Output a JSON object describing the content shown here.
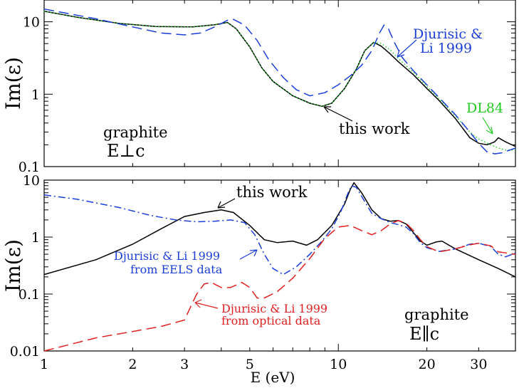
{
  "chart_data": [
    {
      "type": "line",
      "ylabel": "Im(ε)",
      "xlabel": "",
      "xscale": "log",
      "yscale": "log",
      "xlim": [
        1,
        40
      ],
      "ylim": [
        0.1,
        20
      ],
      "yticks": [
        {
          "v": 0.1,
          "label": "0.1"
        },
        {
          "v": 1,
          "label": "1"
        },
        {
          "v": 10,
          "label": "10"
        }
      ],
      "series": [
        {
          "key": "work",
          "style": "solid",
          "color": "#000000",
          "points": [
            [
              1,
              14
            ],
            [
              1.3,
              11.5
            ],
            [
              1.8,
              9.5
            ],
            [
              2.4,
              8.6
            ],
            [
              3.2,
              8.5
            ],
            [
              3.8,
              9.1
            ],
            [
              4.2,
              9.8
            ],
            [
              4.5,
              8
            ],
            [
              5,
              4.5
            ],
            [
              5.5,
              2.3
            ],
            [
              6,
              1.5
            ],
            [
              7,
              0.95
            ],
            [
              8,
              0.75
            ],
            [
              8.8,
              0.68
            ],
            [
              9.5,
              0.75
            ],
            [
              10.5,
              1.2
            ],
            [
              11.5,
              2.2
            ],
            [
              12.3,
              4
            ],
            [
              13.2,
              5.2
            ],
            [
              14,
              4.6
            ],
            [
              15,
              3.6
            ],
            [
              16,
              2.8
            ],
            [
              18,
              1.85
            ],
            [
              20,
              1.2
            ],
            [
              22,
              0.82
            ],
            [
              25,
              0.46
            ],
            [
              28,
              0.25
            ],
            [
              30,
              0.21
            ],
            [
              32,
              0.2
            ],
            [
              34,
              0.22
            ],
            [
              35,
              0.25
            ],
            [
              37,
              0.22
            ],
            [
              40,
              0.19
            ]
          ]
        },
        {
          "key": "dl84",
          "style": "dotted",
          "color": "#22cc22",
          "points": [
            [
              1,
              14
            ],
            [
              1.3,
              11.5
            ],
            [
              1.8,
              9.5
            ],
            [
              2.4,
              8.6
            ],
            [
              3.2,
              8.5
            ],
            [
              3.8,
              9.1
            ],
            [
              4.2,
              9.8
            ],
            [
              4.5,
              8
            ],
            [
              5,
              4.5
            ],
            [
              5.5,
              2.3
            ],
            [
              6,
              1.5
            ],
            [
              7,
              0.95
            ],
            [
              8,
              0.75
            ],
            [
              8.8,
              0.68
            ],
            [
              9.5,
              0.75
            ],
            [
              10.5,
              1.2
            ],
            [
              11.5,
              2.2
            ],
            [
              12.3,
              4
            ],
            [
              13.2,
              5.2
            ],
            [
              14,
              5
            ],
            [
              15,
              4.1
            ],
            [
              16,
              3.1
            ],
            [
              18,
              2
            ],
            [
              20,
              1.28
            ],
            [
              22,
              0.86
            ],
            [
              25,
              0.5
            ],
            [
              28,
              0.3
            ],
            [
              30,
              0.24
            ],
            [
              33,
              0.2
            ],
            [
              35,
              0.18
            ],
            [
              37,
              0.17
            ],
            [
              40,
              0.17
            ]
          ]
        },
        {
          "key": "dj",
          "style": "dashed",
          "color": "#1a3fd8",
          "points": [
            [
              1,
              15
            ],
            [
              1.5,
              11
            ],
            [
              2,
              8.5
            ],
            [
              2.5,
              7
            ],
            [
              3,
              6.6
            ],
            [
              3.4,
              7
            ],
            [
              3.8,
              8.5
            ],
            [
              4.2,
              10.5
            ],
            [
              4.4,
              10.8
            ],
            [
              4.8,
              9
            ],
            [
              5.3,
              5.5
            ],
            [
              5.8,
              3
            ],
            [
              6.5,
              1.7
            ],
            [
              7.2,
              1.15
            ],
            [
              8,
              0.95
            ],
            [
              9,
              1.05
            ],
            [
              10,
              1.35
            ],
            [
              11,
              1.8
            ],
            [
              12,
              2.5
            ],
            [
              13,
              4
            ],
            [
              13.8,
              7
            ],
            [
              14.3,
              9
            ],
            [
              14.8,
              8
            ],
            [
              15.5,
              5.2
            ],
            [
              16.5,
              3.2
            ],
            [
              18,
              2.1
            ],
            [
              20,
              1.35
            ],
            [
              22,
              0.9
            ],
            [
              25,
              0.52
            ],
            [
              28,
              0.3
            ],
            [
              30,
              0.21
            ],
            [
              32,
              0.16
            ],
            [
              34,
              0.15
            ],
            [
              36,
              0.155
            ],
            [
              40,
              0.18
            ]
          ]
        }
      ],
      "annotations": {
        "dj_line1": "Djurisic &",
        "dj_line2": "Li 1999",
        "dl84": "DL84",
        "work": "this work",
        "material": "graphite",
        "orientation": "E⊥c"
      }
    },
    {
      "type": "line",
      "ylabel": "Im(ε)",
      "xlabel": "E (eV)",
      "xscale": "log",
      "yscale": "log",
      "xlim": [
        1,
        40
      ],
      "ylim": [
        0.01,
        10
      ],
      "yticks": [
        {
          "v": 0.01,
          "label": "0.01"
        },
        {
          "v": 0.1,
          "label": "0.1"
        },
        {
          "v": 1,
          "label": "1"
        },
        {
          "v": 10,
          "label": "10"
        }
      ],
      "xticks": [
        {
          "v": 1,
          "label": "1"
        },
        {
          "v": 2,
          "label": "2"
        },
        {
          "v": 3,
          "label": "3"
        },
        {
          "v": 5,
          "label": "5"
        },
        {
          "v": 10,
          "label": "10"
        },
        {
          "v": 20,
          "label": "20"
        },
        {
          "v": 30,
          "label": "30"
        }
      ],
      "series": [
        {
          "key": "work",
          "style": "solid",
          "color": "#000000",
          "points": [
            [
              1,
              0.22
            ],
            [
              1.5,
              0.4
            ],
            [
              2,
              0.75
            ],
            [
              2.5,
              1.4
            ],
            [
              3,
              2.3
            ],
            [
              3.5,
              2.7
            ],
            [
              4,
              3
            ],
            [
              4.4,
              2.7
            ],
            [
              5,
              1.6
            ],
            [
              5.6,
              0.9
            ],
            [
              6.2,
              0.8
            ],
            [
              7,
              0.85
            ],
            [
              7.8,
              0.72
            ],
            [
              8.5,
              0.9
            ],
            [
              9.5,
              1.6
            ],
            [
              10.5,
              3.8
            ],
            [
              11,
              7
            ],
            [
              11.3,
              9
            ],
            [
              12,
              6
            ],
            [
              13,
              3
            ],
            [
              14,
              2.1
            ],
            [
              15,
              1.9
            ],
            [
              16,
              1.95
            ],
            [
              17,
              1.7
            ],
            [
              18,
              1.2
            ],
            [
              19,
              0.85
            ],
            [
              20,
              0.72
            ],
            [
              21.5,
              0.82
            ],
            [
              22.5,
              0.85
            ],
            [
              25,
              0.62
            ],
            [
              30,
              0.4
            ],
            [
              35,
              0.28
            ],
            [
              40,
              0.2
            ]
          ]
        },
        {
          "key": "eels",
          "style": "dashdot",
          "color": "#1a3fd8",
          "points": [
            [
              1,
              5.5
            ],
            [
              1.3,
              4.6
            ],
            [
              1.8,
              3.3
            ],
            [
              2.3,
              2.4
            ],
            [
              2.8,
              2
            ],
            [
              3.3,
              1.85
            ],
            [
              3.8,
              1.9
            ],
            [
              4.3,
              2
            ],
            [
              4.8,
              1.8
            ],
            [
              5.2,
              1.1
            ],
            [
              5.6,
              0.5
            ],
            [
              6,
              0.28
            ],
            [
              6.5,
              0.22
            ],
            [
              7.2,
              0.3
            ],
            [
              8,
              0.5
            ],
            [
              8.8,
              0.85
            ],
            [
              9.5,
              1.4
            ],
            [
              10.2,
              2.8
            ],
            [
              10.8,
              6
            ],
            [
              11.1,
              8
            ],
            [
              11.5,
              7.5
            ],
            [
              12.2,
              4.5
            ],
            [
              13,
              2.6
            ],
            [
              14,
              2.1
            ],
            [
              15,
              1.8
            ],
            [
              16,
              1.65
            ],
            [
              17,
              1.5
            ],
            [
              18,
              1.15
            ],
            [
              19,
              0.8
            ],
            [
              20,
              0.65
            ],
            [
              22,
              0.56
            ],
            [
              25,
              0.62
            ],
            [
              28,
              0.75
            ],
            [
              30,
              0.78
            ],
            [
              33,
              0.68
            ],
            [
              35,
              0.5
            ],
            [
              37,
              0.45
            ],
            [
              40,
              0.52
            ]
          ]
        },
        {
          "key": "optical",
          "style": "dashed",
          "color": "#e02020",
          "points": [
            [
              1,
              0.01
            ],
            [
              1.5,
              0.017
            ],
            [
              2,
              0.022
            ],
            [
              2.5,
              0.027
            ],
            [
              3,
              0.035
            ],
            [
              3.15,
              0.06
            ],
            [
              3.3,
              0.1
            ],
            [
              3.5,
              0.15
            ],
            [
              3.7,
              0.16
            ],
            [
              4,
              0.13
            ],
            [
              4.3,
              0.13
            ],
            [
              4.7,
              0.16
            ],
            [
              5,
              0.13
            ],
            [
              5.3,
              0.085
            ],
            [
              5.6,
              0.085
            ],
            [
              6.2,
              0.11
            ],
            [
              7,
              0.19
            ],
            [
              8,
              0.42
            ],
            [
              9,
              0.95
            ],
            [
              10,
              1.5
            ],
            [
              11,
              1.6
            ],
            [
              12,
              1.3
            ],
            [
              13,
              1.1
            ],
            [
              14,
              1.3
            ],
            [
              15,
              1.7
            ],
            [
              16,
              1.95
            ],
            [
              17,
              1.75
            ],
            [
              18,
              1.3
            ],
            [
              19,
              0.9
            ],
            [
              20,
              0.68
            ],
            [
              22,
              0.55
            ],
            [
              25,
              0.62
            ],
            [
              28,
              0.73
            ],
            [
              30,
              0.78
            ],
            [
              33,
              0.7
            ],
            [
              35,
              0.55
            ],
            [
              40,
              0.5
            ]
          ]
        }
      ],
      "annotations": {
        "work": "this work",
        "eels_line1": "Djurisic & Li 1999",
        "eels_line2": "from EELS data",
        "optical_line1": "Djurisic & Li 1999",
        "optical_line2": "from optical data",
        "material": "graphite",
        "orientation": "E∥c"
      }
    }
  ]
}
